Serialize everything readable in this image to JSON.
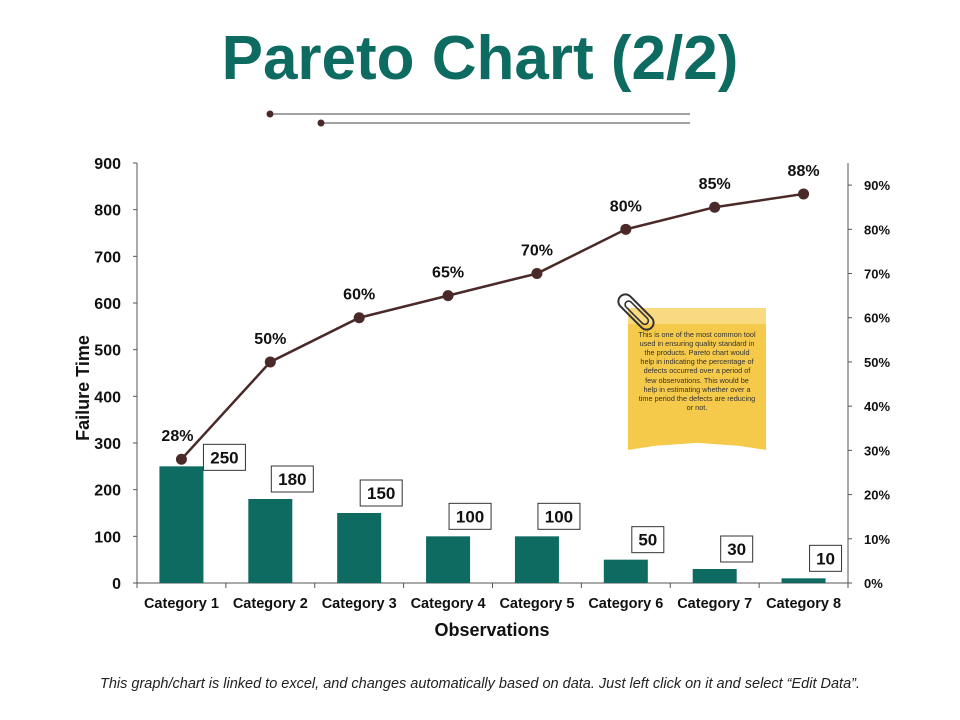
{
  "title": "Pareto Chart (2/2)",
  "footnote": "This graph/chart is linked to excel, and changes automatically based on data. Just left click on it and select “Edit Data”.",
  "note": {
    "text": "This is one of the most common tool used in ensuring quality standard in the products. Pareto chart would help in indicating the percentage of defects occurred over a period of few observations. This would be help in estimating whether over a time period the defects are reducing or not."
  },
  "colors": {
    "title": "#0e6b61",
    "bar": "#0e6b61",
    "line": "#4a2a28",
    "note": "#f5c94a"
  },
  "chart_data": {
    "type": "bar",
    "categories": [
      "Category 1",
      "Category 2",
      "Category 3",
      "Category 4",
      "Category 5",
      "Category 6",
      "Category 7",
      "Category 8"
    ],
    "series": [
      {
        "values": [
          250,
          180,
          150,
          100,
          100,
          50,
          30,
          10
        ],
        "axis": "left"
      },
      {
        "type": "line",
        "values": [
          28,
          50,
          60,
          65,
          70,
          80,
          85,
          88
        ],
        "axis": "right"
      }
    ],
    "bar_labels": [
      "250",
      "180",
      "150",
      "100",
      "100",
      "50",
      "30",
      "10"
    ],
    "line_labels": [
      "28%",
      "50%",
      "60%",
      "65%",
      "70%",
      "80%",
      "85%",
      "88%"
    ],
    "xlabel": "Observations",
    "ylabel": "Failure  Time",
    "ylim": [
      0,
      900
    ],
    "y_ticks": [
      "0",
      "100",
      "200",
      "300",
      "400",
      "500",
      "600",
      "700",
      "800",
      "900"
    ],
    "y2lim": [
      0,
      95
    ],
    "y2_ticks": [
      "0%",
      "10%",
      "20%",
      "30%",
      "40%",
      "50%",
      "60%",
      "70%",
      "80%",
      "90%"
    ],
    "grid": false
  }
}
